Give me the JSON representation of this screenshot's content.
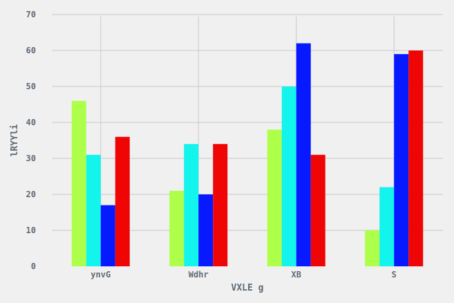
{
  "chart_data": {
    "type": "bar",
    "title": "",
    "xlabel": "VXLE g",
    "ylabel": "lRYYli",
    "categories": [
      "ynvG",
      "Wdhr",
      "XB",
      "S"
    ],
    "series": [
      {
        "color": "#adff4a",
        "values": [
          46,
          21,
          38,
          10
        ]
      },
      {
        "color": "#12f4ec",
        "values": [
          31,
          34,
          50,
          22
        ]
      },
      {
        "color": "#0619ff",
        "values": [
          17,
          20,
          62,
          59
        ]
      },
      {
        "color": "#f00505",
        "values": [
          36,
          34,
          31,
          60
        ]
      }
    ],
    "ylim": [
      0,
      70
    ],
    "yticks": [
      0,
      10,
      20,
      30,
      40,
      50,
      60,
      70
    ],
    "grid": true,
    "legend": false
  }
}
